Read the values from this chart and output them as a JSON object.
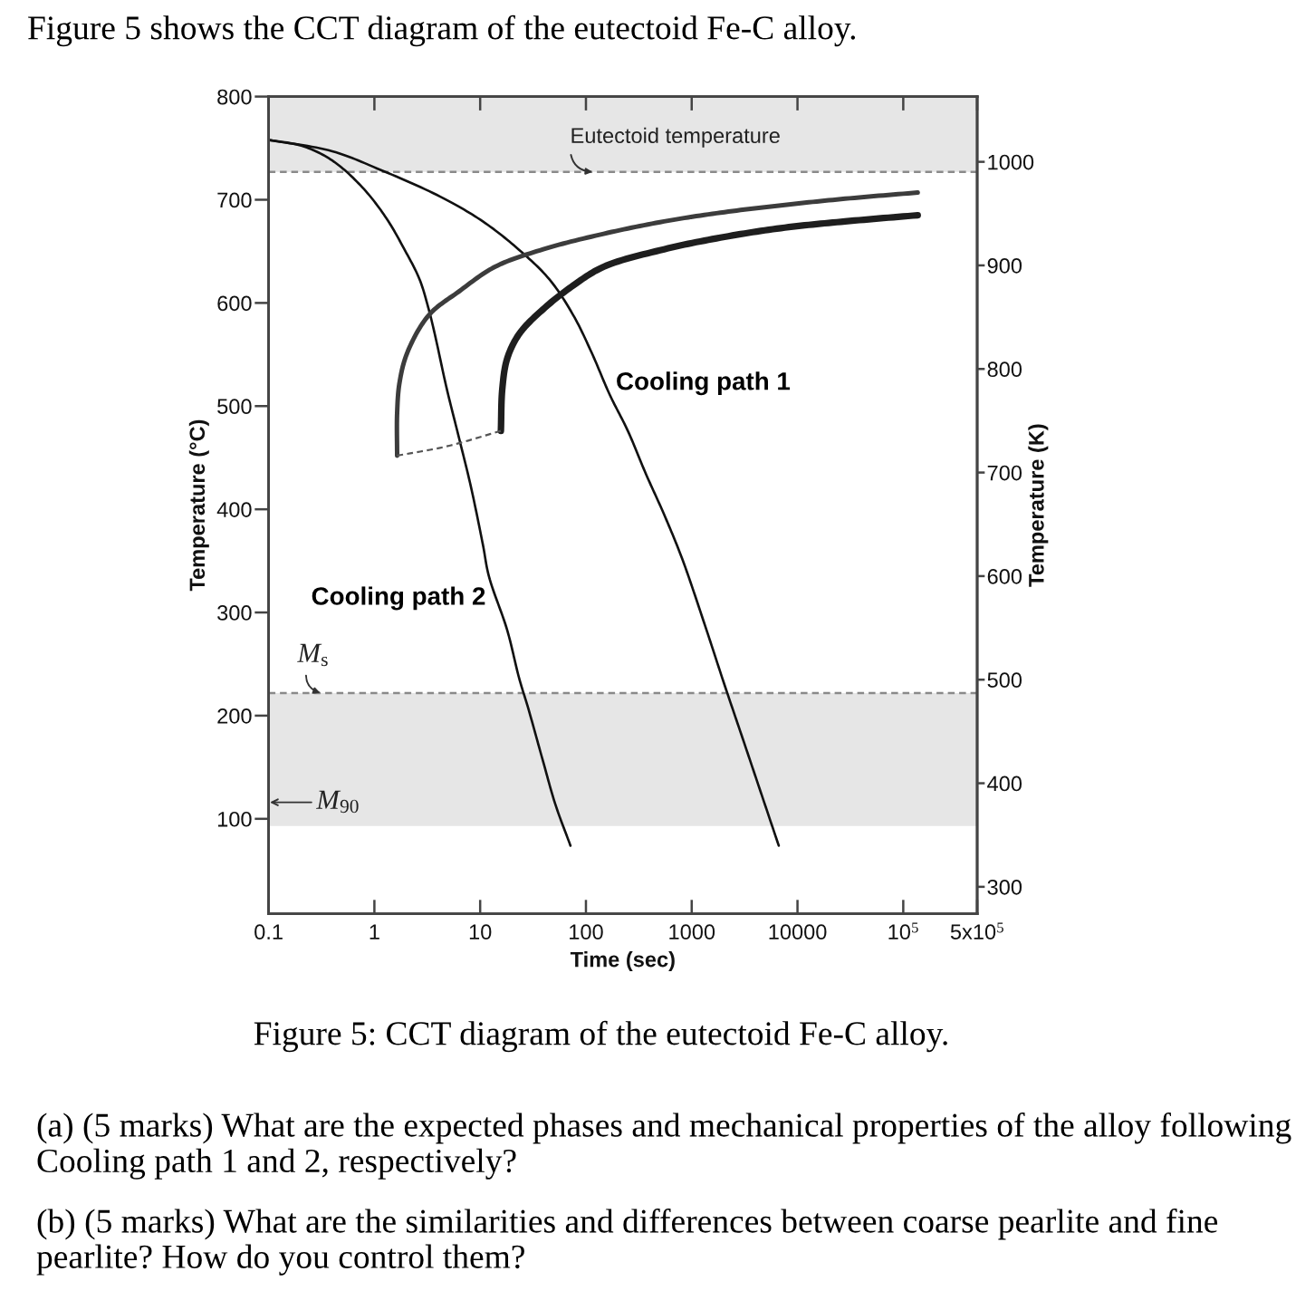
{
  "chart_data": {
    "type": "line",
    "title": "Figure 5: CCT diagram of the eutectoid Fe-C alloy.",
    "xlabel": "Time (sec)",
    "ylabel": "Temperature (°C)",
    "y2label": "Temperature (K)",
    "annotations": [
      "Figure 5 shows the CCT diagram of the eutectoid Fe-C alloy.",
      {
        "text": "M$_{90}$",
        "x": 0.1,
        "y": 116
      },
      "(a) (5 marks) What are the expected phases and mechanical properties of the alloy following Cooling path 1 and 2, respectively?",
      "(b) (5 marks) What are the similarities and differences between coarse pearlite and fine pearlite? How do you control them?"
    ],
    "log": "x",
    "xlim": [
      0.1,
      500000
    ],
    "ylim": [
      8,
      800
    ],
    "y2lim": [
      274,
      1063
    ],
    "xticks": [
      0.1,
      1,
      10,
      100,
      1000,
      10000,
      {
        "value": 100000,
        "label": "10$^{5}$"
      },
      {
        "value": 500000,
        "label": "5x10$^{5}$"
      }
    ],
    "yticks": [
      100,
      200,
      300,
      400,
      500,
      600,
      700,
      800
    ],
    "y2ticks": [
      300,
      400,
      500,
      600,
      700,
      800,
      900,
      1000
    ],
    "bands": [
      {
        "axis": "y",
        "from": 727,
        "to": 800,
        "color": "#e6e6e6"
      },
      {
        "axis": "y",
        "from": 93,
        "to": 222,
        "color": "#e6e6e6"
      }
    ],
    "ref_lines": [
      {
        "axis": "y",
        "value": 727,
        "label": "Eutectoid temperature",
        "color": "#8a8a8a",
        "line_style": "dashed"
      },
      {
        "axis": "y",
        "value": 222,
        "label": "M$_{s}$",
        "color": "#8a8a8a",
        "line_style": "dashed"
      }
    ],
    "series": [
      {
        "name": "Cooling path 1",
        "color": "#111111",
        "line_style": "solid",
        "x": [
          0.1,
          0.4,
          1.14,
          4.2,
          10.6,
          23,
          45,
          76,
          113,
          168,
          249,
          370,
          548,
          813,
          1380,
          2040,
          3030,
          4490,
          6650
        ],
        "values": [
          758,
          747,
          729,
          703,
          679,
          652,
          623,
          588,
          552,
          511,
          476,
          434,
          395,
          352,
          283,
          230,
          178,
          126,
          74
        ]
      },
      {
        "name": "Cooling path 2",
        "color": "#111111",
        "line_style": "solid",
        "x": [
          0.1,
          0.21,
          0.4,
          0.77,
          1.3,
          1.92,
          2.67,
          3.26,
          3.72,
          4.83,
          6.28,
          8.17,
          10.6,
          12.1,
          18,
          23.4,
          28.5,
          39.5,
          51.4,
          71.4
        ],
        "values": [
          758,
          752,
          738,
          712,
          682,
          652,
          623,
          594,
          570,
          517,
          470,
          422,
          366,
          335,
          283,
          236,
          207,
          155,
          114,
          74
        ]
      },
      {
        "color": "#3c3c3c",
        "line_style": "solid",
        "x": [
          1.64,
          1.64,
          1.73,
          2.05,
          3.26,
          6.28,
          13.8,
          39.5,
          147,
          548,
          2040,
          7590,
          28200,
          137000
        ],
        "values": [
          452,
          493,
          523,
          552,
          588,
          611,
          635,
          652,
          667,
          679,
          688,
          695,
          701,
          707
        ]
      },
      {
        "color": "#1e1e1e",
        "line_style": "solid",
        "x": [
          15.7,
          16.2,
          18,
          23.4,
          39.5,
          76,
          147,
          548,
          2040,
          7590,
          28200,
          137000
        ],
        "values": [
          476,
          517,
          546,
          570,
          594,
          617,
          635,
          652,
          664,
          673,
          679,
          685
        ]
      },
      {
        "color": "#555555",
        "line_style": "dashed",
        "x": [
          1.64,
          4.83,
          15.7
        ],
        "values": [
          452,
          461,
          476
        ]
      }
    ]
  }
}
